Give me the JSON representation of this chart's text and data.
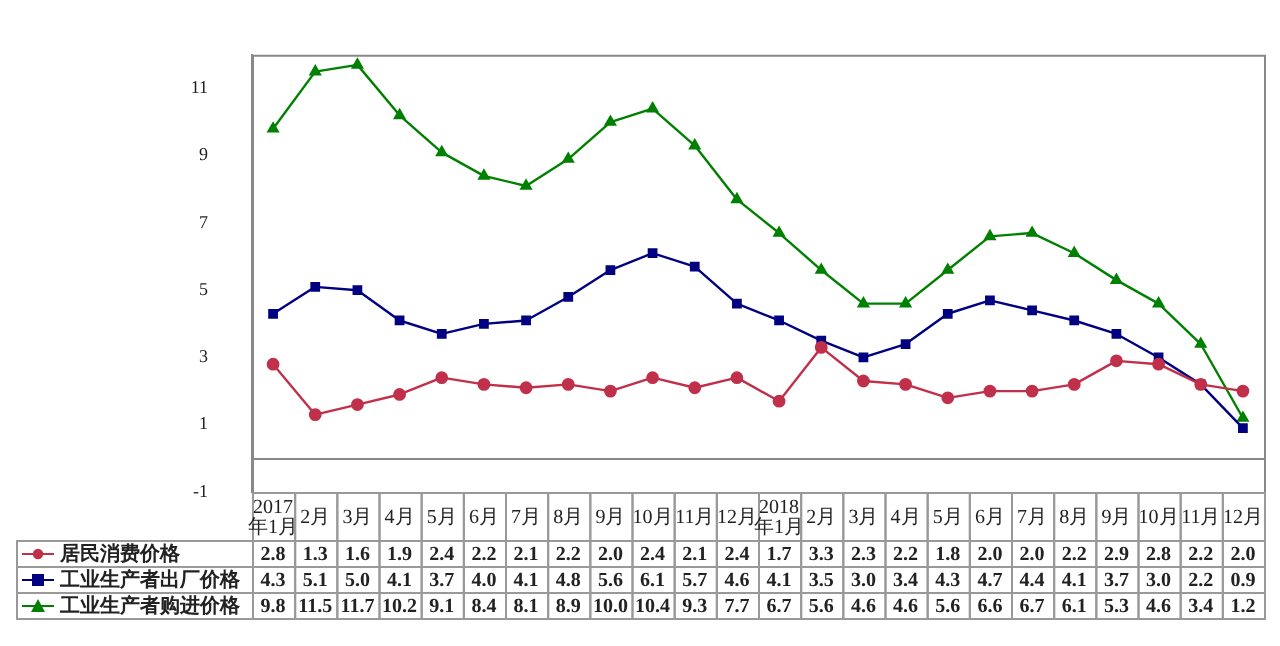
{
  "chart_data": {
    "type": "line",
    "categories": [
      "2017年1月",
      "2月",
      "3月",
      "4月",
      "5月",
      "6月",
      "7月",
      "8月",
      "9月",
      "10月",
      "11月",
      "12月",
      "2018年1月",
      "2月",
      "3月",
      "4月",
      "5月",
      "6月",
      "7月",
      "8月",
      "9月",
      "10月",
      "11月",
      "12月"
    ],
    "series": [
      {
        "name": "居民消费价格",
        "color": "#c0304a",
        "marker": "circle",
        "values": [
          2.8,
          1.3,
          1.6,
          1.9,
          2.4,
          2.2,
          2.1,
          2.2,
          2.0,
          2.4,
          2.1,
          2.4,
          1.7,
          3.3,
          2.3,
          2.2,
          1.8,
          2.0,
          2.0,
          2.2,
          2.9,
          2.8,
          2.2,
          2.0
        ],
        "value_labels": [
          "2.8",
          "1.3",
          "1.6",
          "1.9",
          "2.4",
          "2.2",
          "2.1",
          "2.2",
          "2.0",
          "2.4",
          "2.1",
          "2.4",
          "1.7",
          "3.3",
          "2.3",
          "2.2",
          "1.8",
          "2.0",
          "2.0",
          "2.2",
          "2.9",
          "2.8",
          "2.2",
          "2.0"
        ]
      },
      {
        "name": "工业生产者出厂价格",
        "color": "#000080",
        "marker": "square",
        "values": [
          4.3,
          5.1,
          5.0,
          4.1,
          3.7,
          4.0,
          4.1,
          4.8,
          5.6,
          6.1,
          5.7,
          4.6,
          4.1,
          3.5,
          3.0,
          3.4,
          4.3,
          4.7,
          4.4,
          4.1,
          3.7,
          3.0,
          2.2,
          0.9
        ],
        "value_labels": [
          "4.3",
          "5.1",
          "5.0",
          "4.1",
          "3.7",
          "4.0",
          "4.1",
          "4.8",
          "5.6",
          "6.1",
          "5.7",
          "4.6",
          "4.1",
          "3.5",
          "3.0",
          "3.4",
          "4.3",
          "4.7",
          "4.4",
          "4.1",
          "3.7",
          "3.0",
          "2.2",
          "0.9"
        ]
      },
      {
        "name": "工业生产者购进价格",
        "color": "#008000",
        "marker": "triangle",
        "values": [
          9.8,
          11.5,
          11.7,
          10.2,
          9.1,
          8.4,
          8.1,
          8.9,
          10.0,
          10.4,
          9.3,
          7.7,
          6.7,
          5.6,
          4.6,
          4.6,
          5.6,
          6.6,
          6.7,
          6.1,
          5.3,
          4.6,
          3.4,
          1.2
        ],
        "value_labels": [
          "9.8",
          "11.5",
          "11.7",
          "10.2",
          "9.1",
          "8.4",
          "8.1",
          "8.9",
          "10.0",
          "10.4",
          "9.3",
          "7.7",
          "6.7",
          "5.6",
          "4.6",
          "4.6",
          "5.6",
          "6.6",
          "6.7",
          "6.1",
          "5.3",
          "4.6",
          "3.4",
          "1.2"
        ]
      }
    ],
    "ylim": [
      -1,
      12
    ],
    "yticks": [
      -1,
      1,
      3,
      5,
      7,
      9,
      11
    ],
    "grid": false,
    "legend": "bottom",
    "line_style": "solid"
  }
}
